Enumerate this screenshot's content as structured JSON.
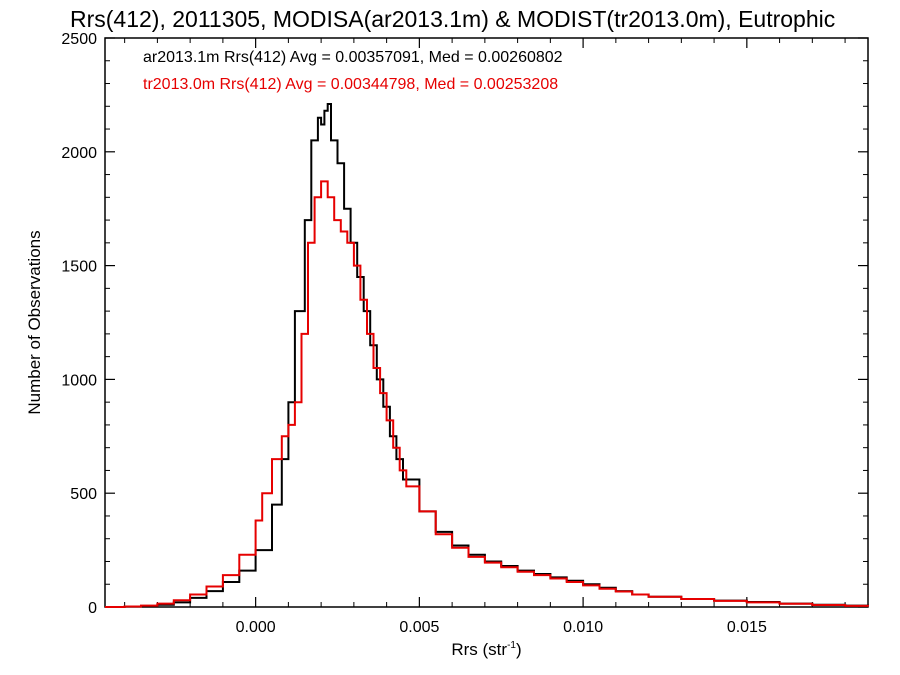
{
  "chart_data": {
    "type": "line",
    "title": "Rrs(412), 2011305, MODISA(ar2013.1m) & MODIST(tr2013.0m), Eutrophic",
    "xlabel": "Rrs (str",
    "xlabel_sup": "-1",
    "xlabel_end": ")",
    "ylabel": "Number of Observations",
    "xlim": [
      -0.0046,
      0.0187
    ],
    "ylim": [
      0,
      2500
    ],
    "x_ticks": [
      0.0,
      0.005,
      0.01,
      0.015
    ],
    "x_tick_labels": [
      "0.000",
      "0.005",
      "0.010",
      "0.015"
    ],
    "y_ticks": [
      0,
      500,
      1000,
      1500,
      2000,
      2500
    ],
    "y_tick_labels": [
      "0",
      "500",
      "1000",
      "1500",
      "2000",
      "2500"
    ],
    "grid": false,
    "legend_position": "top-left",
    "series": [
      {
        "name": "ar2013.1m Rrs(412) Avg = 0.00357091, Med = 0.00260802",
        "color": "#000000",
        "points": [
          [
            -0.0046,
            0
          ],
          [
            -0.004,
            2
          ],
          [
            -0.0035,
            5
          ],
          [
            -0.003,
            10
          ],
          [
            -0.0025,
            20
          ],
          [
            -0.002,
            40
          ],
          [
            -0.0015,
            70
          ],
          [
            -0.001,
            110
          ],
          [
            -0.0005,
            160
          ],
          [
            0.0,
            250
          ],
          [
            0.0005,
            450
          ],
          [
            0.0008,
            650
          ],
          [
            0.001,
            900
          ],
          [
            0.0012,
            1300
          ],
          [
            0.0015,
            1700
          ],
          [
            0.0017,
            2050
          ],
          [
            0.0019,
            2150
          ],
          [
            0.002,
            2120
          ],
          [
            0.0021,
            2180
          ],
          [
            0.0022,
            2210
          ],
          [
            0.0023,
            2050
          ],
          [
            0.0025,
            1950
          ],
          [
            0.0027,
            1750
          ],
          [
            0.0029,
            1600
          ],
          [
            0.0031,
            1450
          ],
          [
            0.0033,
            1300
          ],
          [
            0.0035,
            1150
          ],
          [
            0.0037,
            1000
          ],
          [
            0.0039,
            880
          ],
          [
            0.0041,
            750
          ],
          [
            0.0043,
            650
          ],
          [
            0.0045,
            560
          ],
          [
            0.005,
            420
          ],
          [
            0.0055,
            330
          ],
          [
            0.006,
            270
          ],
          [
            0.0065,
            230
          ],
          [
            0.007,
            200
          ],
          [
            0.0075,
            180
          ],
          [
            0.008,
            160
          ],
          [
            0.0085,
            145
          ],
          [
            0.009,
            130
          ],
          [
            0.0095,
            115
          ],
          [
            0.01,
            100
          ],
          [
            0.0105,
            85
          ],
          [
            0.011,
            70
          ],
          [
            0.0115,
            55
          ],
          [
            0.012,
            45
          ],
          [
            0.013,
            35
          ],
          [
            0.014,
            28
          ],
          [
            0.015,
            22
          ],
          [
            0.016,
            15
          ],
          [
            0.017,
            10
          ],
          [
            0.018,
            6
          ],
          [
            0.0187,
            3
          ]
        ]
      },
      {
        "name": "tr2013.0m Rrs(412) Avg = 0.00344798, Med = 0.00253208",
        "color": "#e60000",
        "points": [
          [
            -0.0046,
            0
          ],
          [
            -0.004,
            2
          ],
          [
            -0.0035,
            6
          ],
          [
            -0.003,
            15
          ],
          [
            -0.0025,
            30
          ],
          [
            -0.002,
            55
          ],
          [
            -0.0015,
            90
          ],
          [
            -0.001,
            140
          ],
          [
            -0.0005,
            230
          ],
          [
            0.0,
            380
          ],
          [
            0.0002,
            500
          ],
          [
            0.0005,
            650
          ],
          [
            0.0008,
            750
          ],
          [
            0.001,
            800
          ],
          [
            0.0012,
            900
          ],
          [
            0.0014,
            1200
          ],
          [
            0.0016,
            1600
          ],
          [
            0.0018,
            1800
          ],
          [
            0.002,
            1870
          ],
          [
            0.0022,
            1800
          ],
          [
            0.0024,
            1700
          ],
          [
            0.0026,
            1650
          ],
          [
            0.0028,
            1600
          ],
          [
            0.003,
            1500
          ],
          [
            0.0032,
            1350
          ],
          [
            0.0034,
            1200
          ],
          [
            0.0036,
            1050
          ],
          [
            0.0038,
            940
          ],
          [
            0.004,
            820
          ],
          [
            0.0042,
            700
          ],
          [
            0.0044,
            600
          ],
          [
            0.0046,
            530
          ],
          [
            0.005,
            420
          ],
          [
            0.0055,
            320
          ],
          [
            0.006,
            260
          ],
          [
            0.0065,
            220
          ],
          [
            0.007,
            195
          ],
          [
            0.0075,
            175
          ],
          [
            0.008,
            155
          ],
          [
            0.0085,
            140
          ],
          [
            0.009,
            125
          ],
          [
            0.0095,
            110
          ],
          [
            0.01,
            95
          ],
          [
            0.0105,
            80
          ],
          [
            0.011,
            68
          ],
          [
            0.0115,
            55
          ],
          [
            0.012,
            45
          ],
          [
            0.013,
            35
          ],
          [
            0.014,
            27
          ],
          [
            0.015,
            20
          ],
          [
            0.016,
            14
          ],
          [
            0.017,
            9
          ],
          [
            0.018,
            5
          ],
          [
            0.0187,
            2
          ]
        ]
      }
    ]
  }
}
